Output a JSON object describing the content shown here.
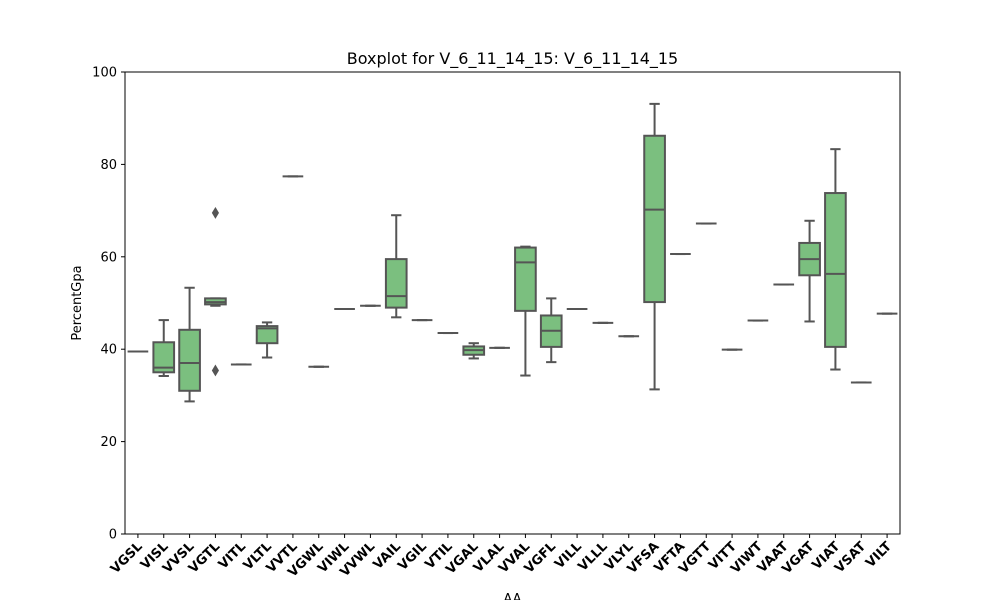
{
  "chart_data": {
    "type": "box",
    "title": "Boxplot for V_6_11_14_15: V_6_11_14_15",
    "xlabel": "AA",
    "ylabel": "PercentGpa",
    "ylim": [
      0,
      100
    ],
    "yticks": [
      0,
      20,
      40,
      60,
      80,
      100
    ],
    "grid": false,
    "box_color": "#7bbf7f",
    "line_color": "#555555",
    "categories": [
      "VGSL",
      "VISL",
      "VVSL",
      "VGTL",
      "VITL",
      "VLTL",
      "VVTL",
      "VGWL",
      "VIWL",
      "VVWL",
      "VAIL",
      "VGIL",
      "VTIL",
      "VGAL",
      "VLAL",
      "VVAL",
      "VGFL",
      "VILL",
      "VLLL",
      "VLYL",
      "VFSA",
      "VFTA",
      "VGTT",
      "VITT",
      "VIWT",
      "VAAT",
      "VGAT",
      "VIAT",
      "VSAT",
      "VILT"
    ],
    "boxes": [
      {
        "min": 39.5,
        "q1": 39.5,
        "median": 39.5,
        "q3": 39.5,
        "max": 39.5,
        "outliers": []
      },
      {
        "min": 34.2,
        "q1": 35.0,
        "median": 36.0,
        "q3": 41.5,
        "max": 46.3,
        "outliers": []
      },
      {
        "min": 28.7,
        "q1": 31.0,
        "median": 37.0,
        "q3": 44.2,
        "max": 53.3,
        "outliers": []
      },
      {
        "min": 49.4,
        "q1": 49.7,
        "median": 50.2,
        "q3": 51.0,
        "max": 51.0,
        "outliers": [
          69.5,
          35.4
        ]
      },
      {
        "min": 36.7,
        "q1": 36.7,
        "median": 36.7,
        "q3": 36.7,
        "max": 36.7,
        "outliers": []
      },
      {
        "min": 38.2,
        "q1": 41.3,
        "median": 44.5,
        "q3": 45.0,
        "max": 45.8,
        "outliers": []
      },
      {
        "min": 77.4,
        "q1": 77.4,
        "median": 77.4,
        "q3": 77.4,
        "max": 77.4,
        "outliers": []
      },
      {
        "min": 36.2,
        "q1": 36.2,
        "median": 36.2,
        "q3": 36.2,
        "max": 36.2,
        "outliers": []
      },
      {
        "min": 48.7,
        "q1": 48.7,
        "median": 48.7,
        "q3": 48.7,
        "max": 48.7,
        "outliers": []
      },
      {
        "min": 49.4,
        "q1": 49.4,
        "median": 49.4,
        "q3": 49.4,
        "max": 49.4,
        "outliers": []
      },
      {
        "min": 46.9,
        "q1": 49.0,
        "median": 51.5,
        "q3": 59.5,
        "max": 69.0,
        "outliers": []
      },
      {
        "min": 46.3,
        "q1": 46.3,
        "median": 46.3,
        "q3": 46.3,
        "max": 46.3,
        "outliers": []
      },
      {
        "min": 43.5,
        "q1": 43.5,
        "median": 43.5,
        "q3": 43.5,
        "max": 43.5,
        "outliers": []
      },
      {
        "min": 38.0,
        "q1": 38.8,
        "median": 39.8,
        "q3": 40.6,
        "max": 41.3,
        "outliers": []
      },
      {
        "min": 40.3,
        "q1": 40.3,
        "median": 40.3,
        "q3": 40.3,
        "max": 40.3,
        "outliers": []
      },
      {
        "min": 34.3,
        "q1": 48.3,
        "median": 58.8,
        "q3": 62.0,
        "max": 62.2,
        "outliers": []
      },
      {
        "min": 37.2,
        "q1": 40.5,
        "median": 44.0,
        "q3": 47.3,
        "max": 51.0,
        "outliers": []
      },
      {
        "min": 48.7,
        "q1": 48.7,
        "median": 48.7,
        "q3": 48.7,
        "max": 48.7,
        "outliers": []
      },
      {
        "min": 45.7,
        "q1": 45.7,
        "median": 45.7,
        "q3": 45.7,
        "max": 45.7,
        "outliers": []
      },
      {
        "min": 42.8,
        "q1": 42.8,
        "median": 42.8,
        "q3": 42.8,
        "max": 42.8,
        "outliers": []
      },
      {
        "min": 31.3,
        "q1": 50.2,
        "median": 70.2,
        "q3": 86.2,
        "max": 93.1,
        "outliers": []
      },
      {
        "min": 60.6,
        "q1": 60.6,
        "median": 60.6,
        "q3": 60.6,
        "max": 60.6,
        "outliers": []
      },
      {
        "min": 67.2,
        "q1": 67.2,
        "median": 67.2,
        "q3": 67.2,
        "max": 67.2,
        "outliers": []
      },
      {
        "min": 39.9,
        "q1": 39.9,
        "median": 39.9,
        "q3": 39.9,
        "max": 39.9,
        "outliers": []
      },
      {
        "min": 46.2,
        "q1": 46.2,
        "median": 46.2,
        "q3": 46.2,
        "max": 46.2,
        "outliers": []
      },
      {
        "min": 54.0,
        "q1": 54.0,
        "median": 54.0,
        "q3": 54.0,
        "max": 54.0,
        "outliers": []
      },
      {
        "min": 46.0,
        "q1": 56.0,
        "median": 59.5,
        "q3": 63.0,
        "max": 67.8,
        "outliers": []
      },
      {
        "min": 35.6,
        "q1": 40.5,
        "median": 56.3,
        "q3": 73.8,
        "max": 83.3,
        "outliers": []
      },
      {
        "min": 32.8,
        "q1": 32.8,
        "median": 32.8,
        "q3": 32.8,
        "max": 32.8,
        "outliers": []
      },
      {
        "min": 47.7,
        "q1": 47.7,
        "median": 47.7,
        "q3": 47.7,
        "max": 47.7,
        "outliers": []
      }
    ]
  }
}
